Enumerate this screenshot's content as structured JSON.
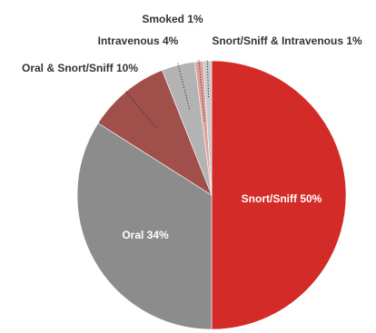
{
  "chart_data": {
    "type": "pie",
    "title": "",
    "start_angle_deg": 0,
    "direction": "clockwise",
    "slices": [
      {
        "label": "Snort/Sniff",
        "value": 50,
        "text": "Snort/Sniff 50%",
        "color": "#d32b27",
        "label_color": "#ffffff",
        "label_style": "inside"
      },
      {
        "label": "Oral",
        "value": 34,
        "text": "Oral 34%",
        "color": "#8c8c8c",
        "label_color": "#ffffff",
        "label_style": "inside"
      },
      {
        "label": "Oral & Snort/Sniff",
        "value": 10,
        "text": "Oral & Snort/Sniff 10%",
        "color": "#a04f4a",
        "label_color": "#333333",
        "label_style": "leader"
      },
      {
        "label": "Intravenous",
        "value": 4,
        "text": "Intravenous 4%",
        "color": "#b3b3b3",
        "label_color": "#333333",
        "label_style": "leader"
      },
      {
        "label": "Smoked",
        "value": 1,
        "text": "Smoked 1%",
        "color": "#e0a09b",
        "label_color": "#333333",
        "label_style": "leader"
      },
      {
        "label": "Snort/Sniff & Intravenous",
        "value": 1,
        "text": "Snort/Sniff & Intravenous 1%",
        "color": "#c9c9c9",
        "label_color": "#333333",
        "label_style": "leader"
      }
    ]
  }
}
